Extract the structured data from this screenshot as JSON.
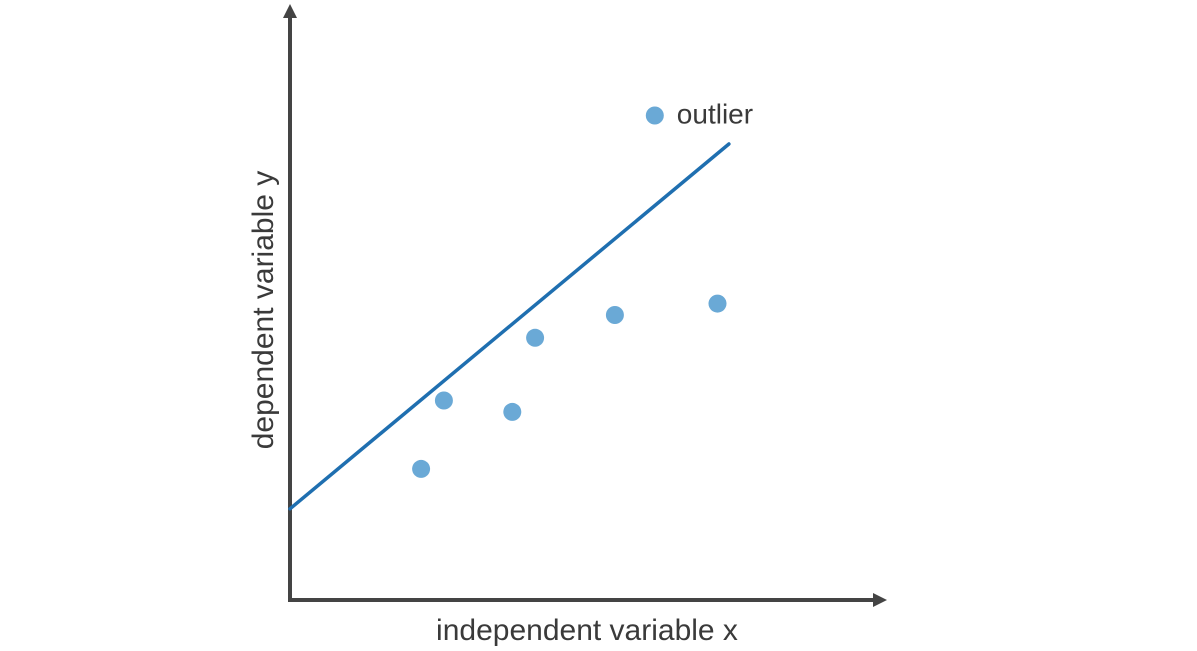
{
  "chart_data": {
    "type": "scatter",
    "title": "",
    "xlabel": "independent variable x",
    "ylabel": "dependent variable y",
    "xlim": [
      0,
      10
    ],
    "ylim": [
      0,
      10
    ],
    "grid": false,
    "axis_ticks": false,
    "series": [
      {
        "points": [
          {
            "x": 2.3,
            "y": 2.3
          },
          {
            "x": 2.7,
            "y": 3.5
          },
          {
            "x": 3.9,
            "y": 3.3
          },
          {
            "x": 4.3,
            "y": 4.6
          },
          {
            "x": 5.7,
            "y": 5.0
          },
          {
            "x": 7.5,
            "y": 5.2
          },
          {
            "x": 6.4,
            "y": 8.5
          }
        ]
      }
    ],
    "regression_line": {
      "x1": 0,
      "y1": 1.6,
      "x2": 7.7,
      "y2": 8.0
    },
    "annotations": [
      {
        "text": "outlier",
        "x": 6.4,
        "y": 8.5
      }
    ],
    "colors": {
      "points": "#6aa9d6",
      "line": "#1f6fb0",
      "axis": "#444444",
      "text": "#3a3a3a"
    }
  }
}
